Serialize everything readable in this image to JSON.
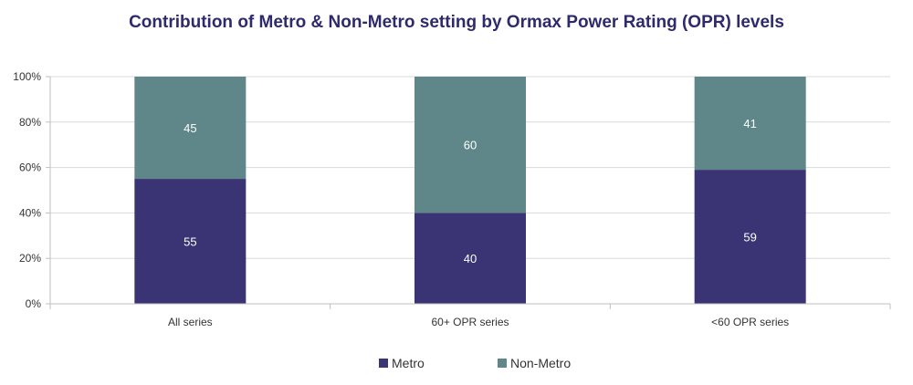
{
  "chart_data": {
    "type": "bar",
    "stacked": true,
    "title": "Contribution of Metro & Non-Metro setting by Ormax Power Rating (OPR) levels",
    "categories": [
      "All series",
      "60+ OPR series",
      "<60 OPR series"
    ],
    "series": [
      {
        "name": "Metro",
        "values": [
          55,
          40,
          59
        ],
        "color": "#3a3474"
      },
      {
        "name": "Non-Metro",
        "values": [
          45,
          60,
          41
        ],
        "color": "#5f878a"
      }
    ],
    "ylim": [
      0,
      100
    ],
    "y_ticks": [
      "0%",
      "20%",
      "40%",
      "60%",
      "80%",
      "100%"
    ],
    "grid": true,
    "legend_position": "bottom"
  }
}
